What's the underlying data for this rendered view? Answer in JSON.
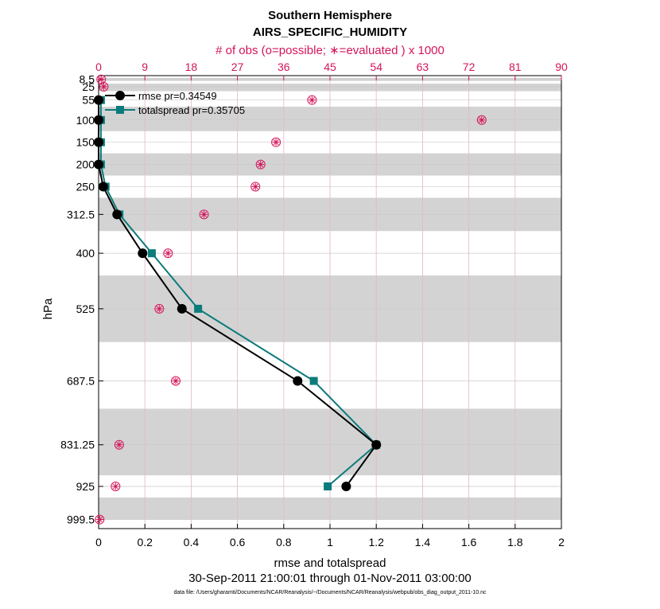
{
  "chart_data": {
    "type": "line",
    "title": "Southern Hemisphere",
    "subtitle": "AIRS_SPECIFIC_HUMIDITY",
    "top_axis_label": "# of obs (o=possible; ∗=evaluated ) x 1000",
    "xlabel": "rmse and totalspread",
    "ylabel": "hPa",
    "date_range": "30-Sep-2011 21:00:01 through 01-Nov-2011 03:00:00",
    "footnote": "data file: /Users/gharamti/Documents/NCAR/Reanalysis/~/Documents/NCAR/Reanalysis/webpub/obs_diag_output_2011-10.nc",
    "xlim": [
      0,
      2
    ],
    "x_ticks": [
      "0",
      "0.2",
      "0.4",
      "0.6",
      "0.8",
      "1",
      "1.2",
      "1.4",
      "1.6",
      "1.8",
      "2"
    ],
    "top_xlim": [
      0,
      90
    ],
    "top_ticks": [
      "0",
      "9",
      "18",
      "27",
      "36",
      "45",
      "54",
      "63",
      "72",
      "81",
      "90"
    ],
    "levels": [
      8.5,
      25,
      55,
      100,
      150,
      200,
      250,
      312.5,
      400,
      525,
      687.5,
      831.25,
      925,
      999.5
    ],
    "level_labels": [
      "8.5",
      "25",
      "55",
      "100",
      "150",
      "200",
      "250",
      "312.5",
      "400",
      "525",
      "687.5",
      "831.25",
      "925",
      "999.5"
    ],
    "layer_bounds": [
      [
        5,
        12
      ],
      [
        18,
        35
      ],
      [
        70,
        125
      ],
      [
        175,
        225
      ],
      [
        275,
        350
      ],
      [
        450,
        600
      ],
      [
        750,
        900
      ],
      [
        950,
        1000
      ]
    ],
    "series": [
      {
        "name": "rmse",
        "legend": "rmse pr=0.34549",
        "color": "#000000",
        "marker": "circle",
        "values": [
          null,
          null,
          0.0,
          0.0,
          0.0,
          0.0,
          0.02,
          0.08,
          0.19,
          0.36,
          0.86,
          1.2,
          1.07,
          null
        ]
      },
      {
        "name": "totalspread",
        "legend": "totalspread pr=0.35705",
        "color": "#0c7b7b",
        "marker": "square",
        "values": [
          null,
          null,
          0.01,
          0.01,
          0.01,
          0.01,
          0.03,
          0.09,
          0.23,
          0.43,
          0.93,
          1.2,
          0.99,
          null
        ]
      }
    ],
    "obs_possible": [
      0.5,
      1.0,
      41.5,
      74.5,
      34.5,
      31.5,
      30.5,
      20.5,
      13.5,
      11.8,
      15.0,
      4.0,
      3.3,
      0.2
    ],
    "obs_evaluated": [
      0.5,
      1.0,
      41.5,
      74.5,
      34.5,
      31.5,
      30.5,
      20.5,
      13.5,
      11.8,
      15.0,
      4.0,
      3.3,
      0.2
    ],
    "colors": {
      "top_axis": "#d4145a",
      "shading": "#d3d3d3",
      "grid": "#c9c9c9"
    }
  }
}
